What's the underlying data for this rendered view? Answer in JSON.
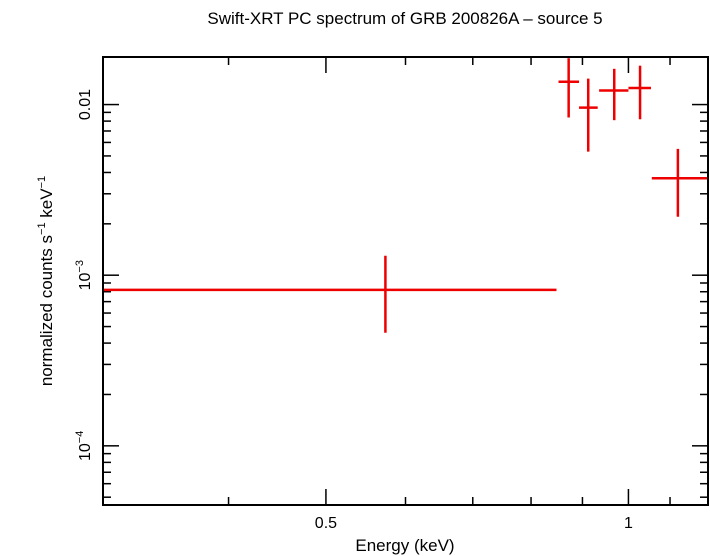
{
  "chart_data": {
    "type": "scatter",
    "title": "Swift-XRT PC spectrum of GRB 200826A – source 5",
    "xlabel": "Energy (keV)",
    "ylabel": {
      "prefix": "normalized counts s",
      "exp1": "−1",
      "middle": " keV",
      "exp2": "−1"
    },
    "xscale": "log",
    "yscale": "log",
    "xlim": [
      0.3,
      1.2
    ],
    "ylim": [
      4.5e-05,
      0.019
    ],
    "x_ticks": [
      {
        "value": 0.5,
        "label": "0.5"
      },
      {
        "value": 1,
        "label": "1"
      }
    ],
    "y_ticks": [
      {
        "value": 0.01,
        "label": "0.01",
        "base": "",
        "exp": ""
      },
      {
        "value": 0.001,
        "label": "",
        "base": "10",
        "exp": "−3"
      },
      {
        "value": 0.0001,
        "label": "",
        "base": "10",
        "exp": "−4"
      }
    ],
    "color": "#ee0000",
    "series": [
      {
        "name": "source 5",
        "points": [
          {
            "x": 0.573,
            "xlo": 0.3,
            "xhi": 0.848,
            "y": 0.00082,
            "ylo": 0.00046,
            "yhi": 0.0013
          },
          {
            "x": 0.872,
            "xlo": 0.852,
            "xhi": 0.893,
            "y": 0.0136,
            "ylo": 0.0084,
            "yhi": 0.0187
          },
          {
            "x": 0.912,
            "xlo": 0.893,
            "xhi": 0.932,
            "y": 0.0096,
            "ylo": 0.0053,
            "yhi": 0.0142
          },
          {
            "x": 0.968,
            "xlo": 0.935,
            "xhi": 1.0,
            "y": 0.0121,
            "ylo": 0.0081,
            "yhi": 0.0162
          },
          {
            "x": 1.027,
            "xlo": 1.0,
            "xhi": 1.053,
            "y": 0.0125,
            "ylo": 0.0082,
            "yhi": 0.0169
          },
          {
            "x": 1.12,
            "xlo": 1.055,
            "xhi": 1.2,
            "y": 0.0037,
            "ylo": 0.0022,
            "yhi": 0.0055
          }
        ]
      }
    ]
  }
}
